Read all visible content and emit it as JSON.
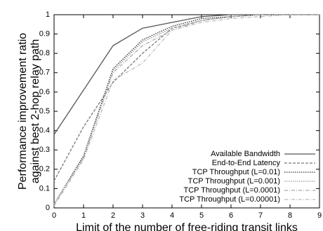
{
  "chart_data": {
    "type": "line",
    "x_label": "Limit of the number of free-riding transit links",
    "y_label": [
      "Performance improvement ratio",
      "against best 2-hop relay path"
    ],
    "x": [
      0,
      1,
      2,
      3,
      4,
      5,
      6,
      7,
      8,
      9
    ],
    "xlim": [
      0,
      9
    ],
    "xticks": [
      0,
      1,
      2,
      3,
      4,
      5,
      6,
      7,
      8,
      9
    ],
    "ylim": [
      0,
      1
    ],
    "yticks": [
      0,
      0.1,
      0.2,
      0.3,
      0.4,
      0.5,
      0.6,
      0.7,
      0.8,
      0.9,
      1
    ],
    "grid": false,
    "legend": "bottom-right",
    "series": [
      {
        "name": "Available Bandwidth",
        "color": "#555555",
        "style": "solid",
        "values": [
          0.38,
          0.61,
          0.84,
          0.93,
          0.96,
          0.99,
          1.0,
          1.0,
          1.0,
          1.0
        ]
      },
      {
        "name": "End-to-End Latency",
        "color": "#777777",
        "style": "dashed",
        "values": [
          0.14,
          0.42,
          0.65,
          0.8,
          0.93,
          0.97,
          0.99,
          1.0,
          1.0,
          1.0
        ]
      },
      {
        "name": "TCP Throughput (L=0.01)",
        "color": "#333333",
        "style": "dotted",
        "values": [
          0.02,
          0.27,
          0.72,
          0.87,
          0.94,
          0.98,
          0.99,
          1.0,
          1.0,
          1.0
        ]
      },
      {
        "name": "TCP Throughput (L=0.001)",
        "color": "#999999",
        "style": "dotted",
        "values": [
          0.02,
          0.26,
          0.71,
          0.86,
          0.93,
          0.97,
          0.99,
          1.0,
          1.0,
          1.0
        ]
      },
      {
        "name": "TCP Throughput (L=0.0001)",
        "color": "#aaaaaa",
        "style": "dashdot",
        "values": [
          0.02,
          0.26,
          0.7,
          0.84,
          0.92,
          0.97,
          0.99,
          1.0,
          1.0,
          1.0
        ]
      },
      {
        "name": "TCP Throughput (L=0.00001)",
        "color": "#bbbbbb",
        "style": "dashdot",
        "values": [
          0.01,
          0.25,
          0.66,
          0.75,
          0.92,
          0.96,
          0.98,
          0.99,
          1.0,
          1.0
        ]
      }
    ]
  }
}
